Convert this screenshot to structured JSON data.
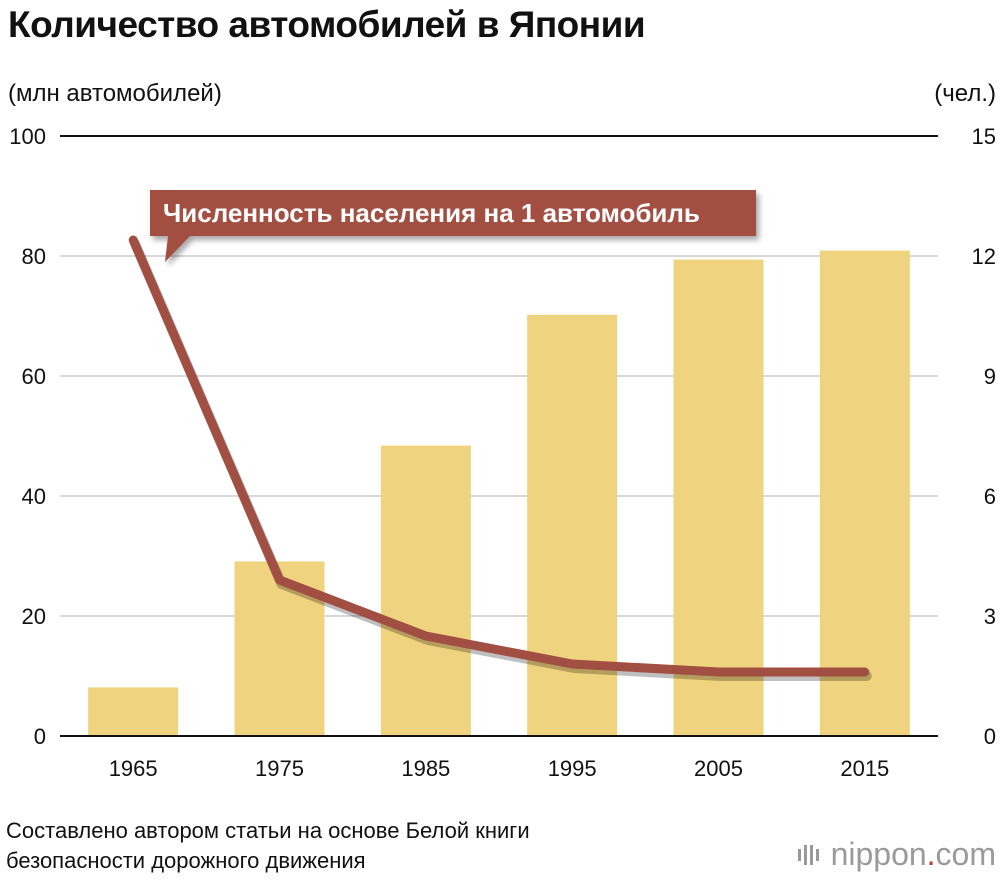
{
  "title": "Количество автомобилей в Японии",
  "source_lines": [
    "Составлено автором статьи на основе Белой книги",
    "безопасности дорожного движения"
  ],
  "logo": {
    "main": "nippon",
    "dot": ".",
    "suffix": "com"
  },
  "colors": {
    "bar": "#f0d37e",
    "line": "#a24f43",
    "grid": "#cccccc",
    "axis": "#111111"
  },
  "chart_data": {
    "type": "bar+line",
    "title": "Количество автомобилей в Японии",
    "categories": [
      "1965",
      "1975",
      "1985",
      "1995",
      "2005",
      "2015"
    ],
    "series": [
      {
        "name": "Количество автомобилей",
        "type": "bar",
        "axis": "left",
        "values": [
          8.1,
          29.1,
          48.4,
          70.2,
          79.4,
          80.9
        ]
      },
      {
        "name": "Численность населения на 1 автомобиль",
        "type": "line",
        "axis": "right",
        "values": [
          12.4,
          3.9,
          2.5,
          1.8,
          1.6,
          1.6
        ]
      }
    ],
    "ylabel": "(млн автомобилей)",
    "ylabel_right": "(чел.)",
    "ylim": [
      0,
      100
    ],
    "ylim_right": [
      0,
      15
    ],
    "yticks": [
      "0",
      "20",
      "40",
      "60",
      "80",
      "100"
    ],
    "yticks_right": [
      "0",
      "3",
      "6",
      "9",
      "12",
      "15"
    ],
    "grid": true,
    "annotation": "Численность населения на 1 автомобиль"
  }
}
